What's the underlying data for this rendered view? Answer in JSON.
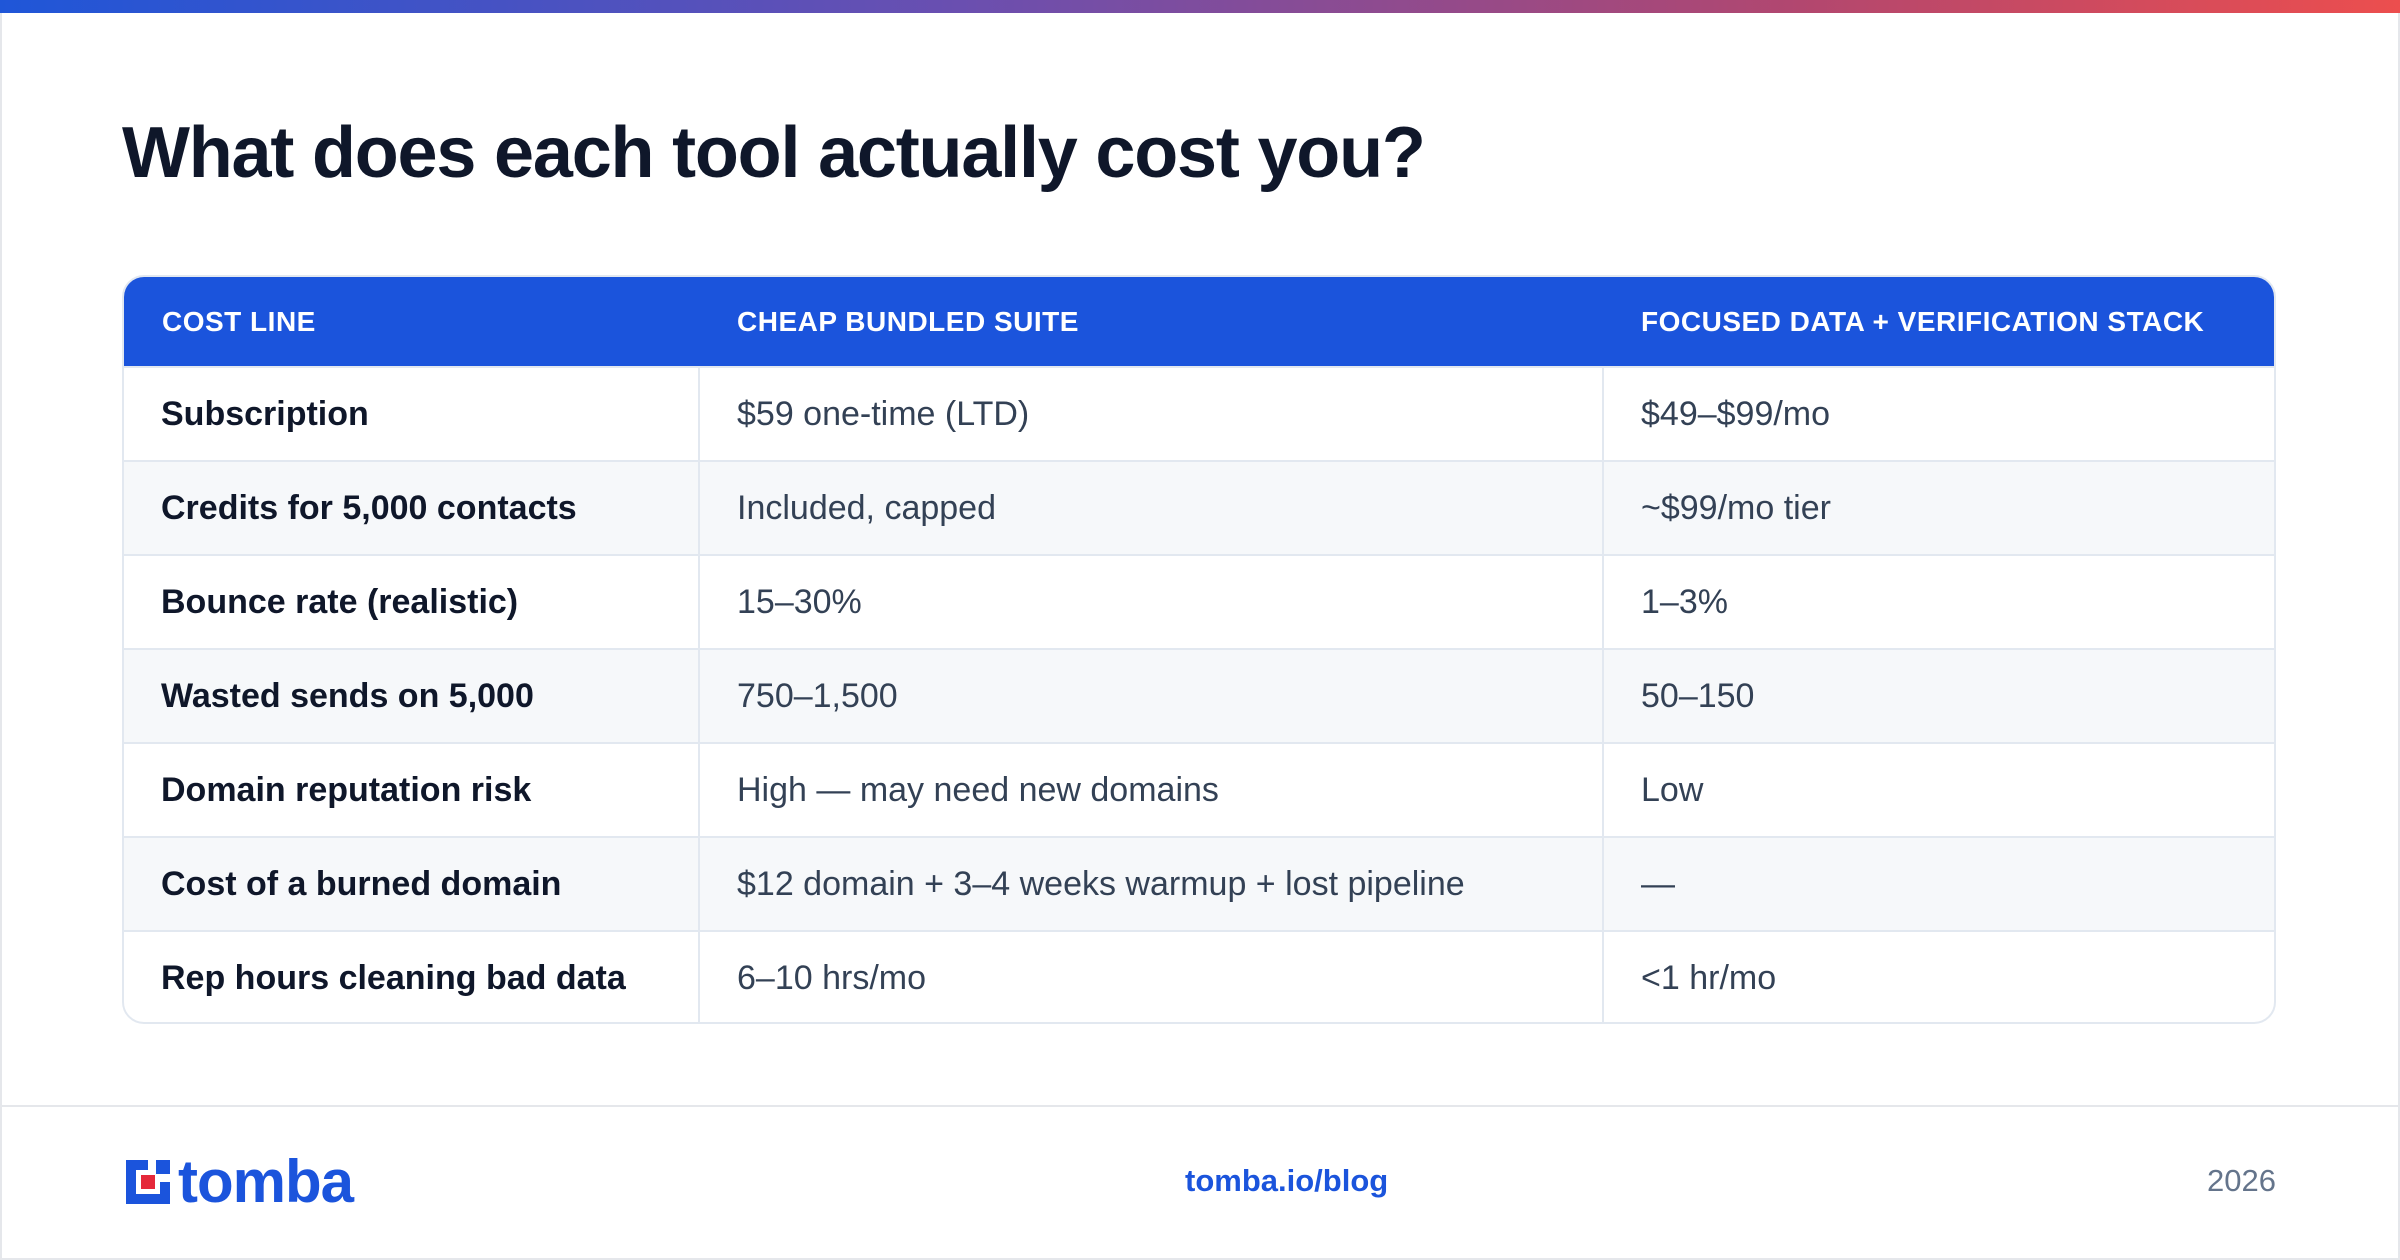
{
  "title": "What does each tool actually cost you?",
  "table": {
    "headers": [
      "COST LINE",
      "CHEAP BUNDLED SUITE",
      "FOCUSED DATA + VERIFICATION STACK"
    ],
    "rows": [
      [
        "Subscription",
        "$59 one-time (LTD)",
        "$49–$99/mo"
      ],
      [
        "Credits for 5,000 contacts",
        "Included, capped",
        "~$99/mo tier"
      ],
      [
        "Bounce rate (realistic)",
        "15–30%",
        "1–3%"
      ],
      [
        "Wasted sends on 5,000",
        "750–1,500",
        "50–150"
      ],
      [
        "Domain reputation risk",
        "High — may need new domains",
        "Low"
      ],
      [
        "Cost of a burned domain",
        "$12 domain + 3–4 weeks warmup + lost pipeline",
        "—"
      ],
      [
        "Rep hours cleaning bad data",
        "6–10 hrs/mo",
        "<1 hr/mo"
      ]
    ]
  },
  "footer": {
    "logo_text": "tomba",
    "link": "tomba.io/blog",
    "year": "2026"
  },
  "colors": {
    "accent": "#1b54dc",
    "heading": "#0f172a",
    "body_text": "#334155",
    "muted": "#64748b",
    "logo_red": "#e5283a"
  },
  "icons": [
    "tomba-logo-icon"
  ]
}
